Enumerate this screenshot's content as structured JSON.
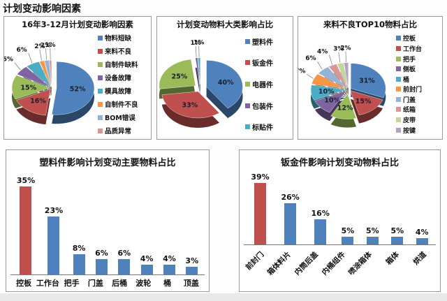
{
  "page_title": "计划变动影响因素",
  "chart_data": [
    {
      "type": "pie",
      "style": "3d-exploded",
      "title": "16年3-12月计划变动影响因素",
      "labels": [
        "物料短缺",
        "来料不良",
        "自制件缺料",
        "设备故障",
        "模具故障",
        "自制件不良",
        "BOM错误",
        "品质异常"
      ],
      "values": [
        52,
        16,
        15,
        6,
        6,
        2,
        2,
        1
      ],
      "colors": [
        "#4F81BD",
        "#C0504D",
        "#9BBB59",
        "#8064A2",
        "#4BACC6",
        "#F79646",
        "#95B3D7",
        "#D99694"
      ],
      "legend_position": "right"
    },
    {
      "type": "pie",
      "style": "3d-exploded",
      "title": "计划变动物料大类影响占比",
      "labels": [
        "塑料件",
        "钣金件",
        "电器件",
        "包装件",
        "标贴件"
      ],
      "values": [
        40,
        33,
        25,
        1,
        1
      ],
      "colors": [
        "#4F81BD",
        "#C0504D",
        "#9BBB59",
        "#8064A2",
        "#4BACC6"
      ],
      "legend_position": "right"
    },
    {
      "type": "pie",
      "style": "3d-exploded",
      "title": "来料不良TOP10物料占比",
      "labels": [
        "控板",
        "工作台",
        "把手",
        "侧板",
        "桶",
        "前封门",
        "门盖",
        "纸箱",
        "皮带",
        "按键"
      ],
      "values": [
        31,
        15,
        12,
        10,
        10,
        7,
        6,
        4,
        3,
        2
      ],
      "colors": [
        "#4F81BD",
        "#C0504D",
        "#9BBB59",
        "#8064A2",
        "#4BACC6",
        "#F79646",
        "#95B3D7",
        "#D99694",
        "#C3D69B",
        "#B3A2C7"
      ],
      "legend_position": "right"
    },
    {
      "type": "bar",
      "title": "塑料件影响计划变动主要物料占比",
      "categories": [
        "控板",
        "工作台",
        "把手",
        "门盖",
        "后桶",
        "波轮",
        "桶",
        "顶盖"
      ],
      "values": [
        35,
        23,
        8,
        6,
        6,
        4,
        4,
        3
      ],
      "value_suffix": "%",
      "colors": [
        "#C0504D",
        "#4F81BD",
        "#4F81BD",
        "#4F81BD",
        "#4F81BD",
        "#4F81BD",
        "#4F81BD",
        "#4F81BD"
      ],
      "ylim": [
        0,
        35
      ],
      "grid": false,
      "label_rotation": 0
    },
    {
      "type": "bar",
      "title": "钣金件影响计划变动物料占比",
      "categories": [
        "前封门",
        "箱体料片",
        "内筒后盖",
        "内桶组件",
        "喷涂箱体",
        "箱体",
        "烘道"
      ],
      "values": [
        39,
        26,
        16,
        5,
        5,
        5,
        4
      ],
      "value_suffix": "%",
      "colors": [
        "#C0504D",
        "#4F81BD",
        "#4F81BD",
        "#4F81BD",
        "#4F81BD",
        "#4F81BD",
        "#4F81BD"
      ],
      "ylim": [
        0,
        39
      ],
      "grid": false,
      "label_rotation": -45
    }
  ]
}
